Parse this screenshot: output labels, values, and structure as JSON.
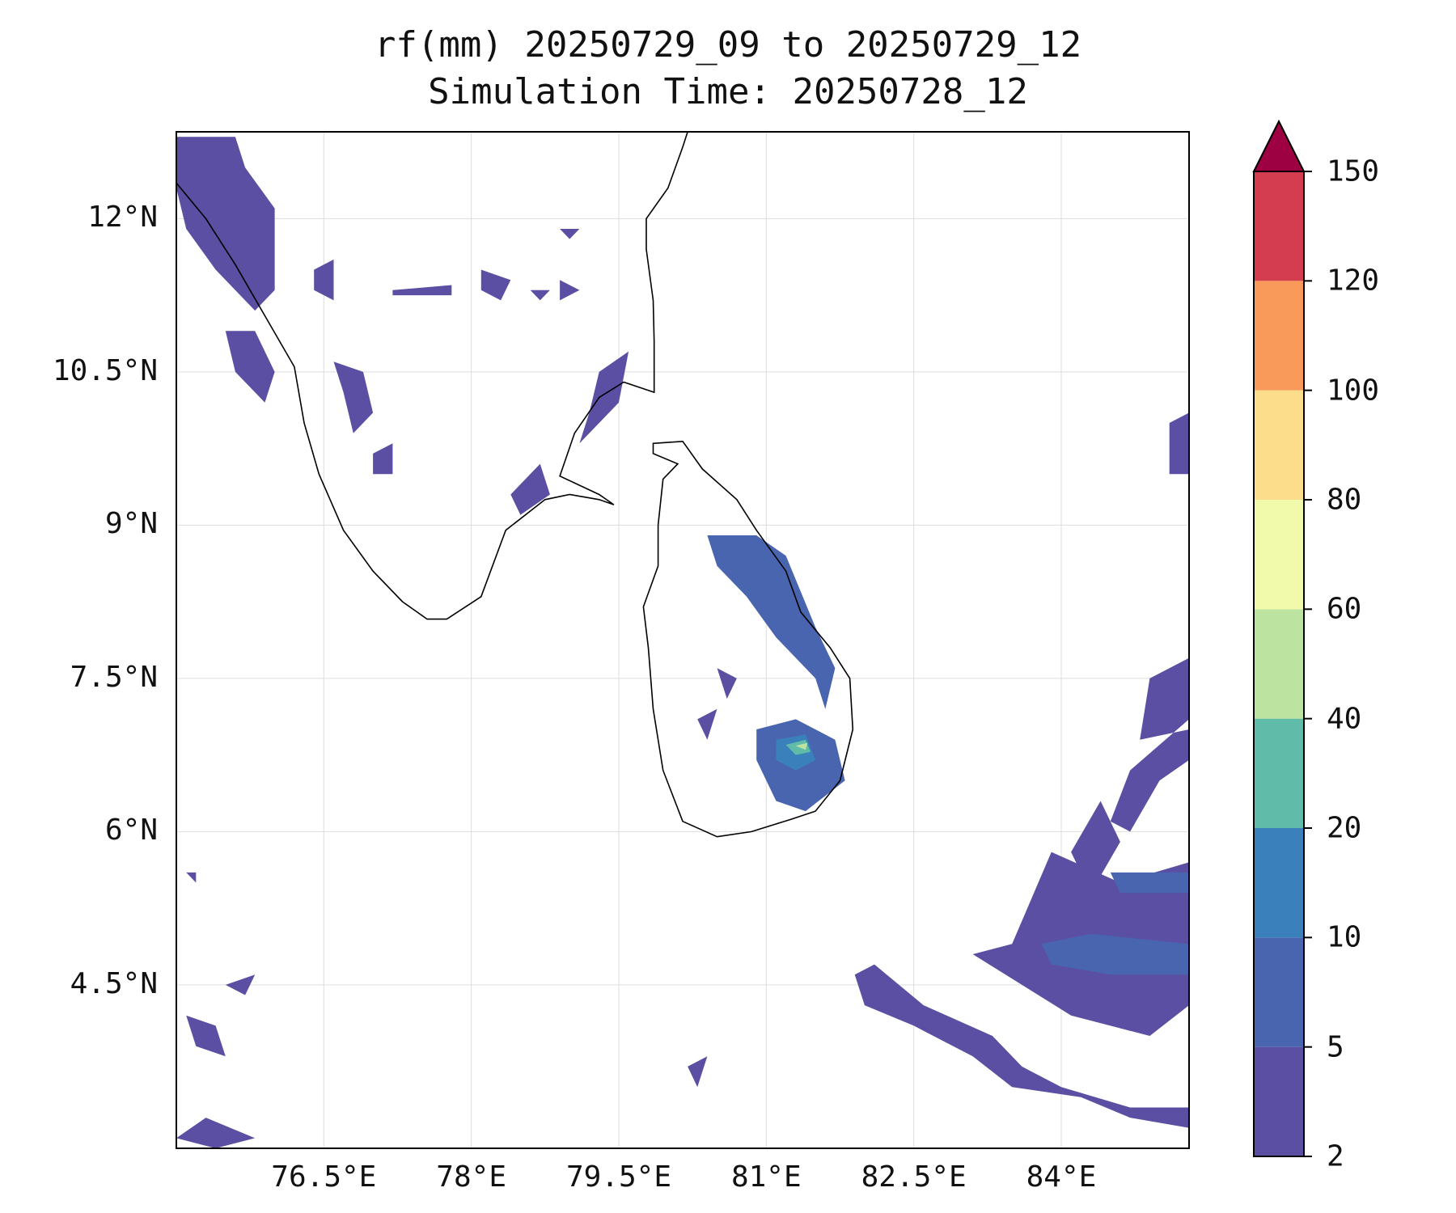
{
  "title": {
    "line1": "rf(mm) 20250729_09 to 20250729_12",
    "line2": "Simulation Time: 20250728_12"
  },
  "map": {
    "extent": {
      "lon_min": 75.0,
      "lon_max": 85.3,
      "lat_min": 2.9,
      "lat_max": 12.85
    },
    "lat_ticks": [
      {
        "value": 12.0,
        "label": "12°N"
      },
      {
        "value": 10.5,
        "label": "10.5°N"
      },
      {
        "value": 9.0,
        "label": "9°N"
      },
      {
        "value": 7.5,
        "label": "7.5°N"
      },
      {
        "value": 6.0,
        "label": "6°N"
      },
      {
        "value": 4.5,
        "label": "4.5°N"
      }
    ],
    "lon_ticks": [
      {
        "value": 76.5,
        "label": "76.5°E"
      },
      {
        "value": 78.0,
        "label": "78°E"
      },
      {
        "value": 79.5,
        "label": "79.5°E"
      },
      {
        "value": 81.0,
        "label": "81°E"
      },
      {
        "value": 82.5,
        "label": "82.5°E"
      },
      {
        "value": 84.0,
        "label": "84°E"
      }
    ],
    "gridlines": true,
    "coastline_color": "#000000"
  },
  "colorbar": {
    "levels": [
      "2",
      "5",
      "10",
      "20",
      "40",
      "60",
      "80",
      "100",
      "120",
      "150"
    ],
    "colors": [
      "#5a4fa2",
      "#4a65b0",
      "#3a80bb",
      "#60bca8",
      "#bde3a0",
      "#f1f9aa",
      "#fbdd8b",
      "#f99a5a",
      "#d43d50"
    ],
    "extend_color": "#9d0142",
    "extend": "max"
  },
  "rain_regions": [
    {
      "name": "north-kerala-coast",
      "level": 0,
      "polys": [
        [
          [
            75.0,
            12.8
          ],
          [
            75.6,
            12.8
          ],
          [
            75.7,
            12.5
          ],
          [
            76.0,
            12.1
          ],
          [
            76.0,
            11.3
          ],
          [
            75.8,
            11.1
          ],
          [
            75.4,
            11.5
          ],
          [
            75.1,
            11.9
          ],
          [
            75.0,
            12.3
          ]
        ]
      ]
    },
    {
      "name": "kerala-coast-mid",
      "level": 0,
      "polys": [
        [
          [
            75.5,
            10.9
          ],
          [
            75.8,
            10.9
          ],
          [
            76.0,
            10.5
          ],
          [
            75.9,
            10.2
          ],
          [
            75.6,
            10.5
          ]
        ]
      ]
    },
    {
      "name": "kerala-interior",
      "level": 0,
      "polys": [
        [
          [
            76.4,
            11.5
          ],
          [
            76.6,
            11.6
          ],
          [
            76.6,
            11.2
          ],
          [
            76.4,
            11.3
          ]
        ],
        [
          [
            76.6,
            10.6
          ],
          [
            76.9,
            10.5
          ],
          [
            77.0,
            10.1
          ],
          [
            76.8,
            9.9
          ],
          [
            76.7,
            10.3
          ]
        ],
        [
          [
            77.0,
            9.7
          ],
          [
            77.2,
            9.8
          ],
          [
            77.2,
            9.5
          ],
          [
            77.0,
            9.5
          ]
        ]
      ]
    },
    {
      "name": "tn-interior-patches",
      "level": 0,
      "polys": [
        [
          [
            77.2,
            11.3
          ],
          [
            77.8,
            11.35
          ],
          [
            77.8,
            11.25
          ],
          [
            77.2,
            11.25
          ]
        ],
        [
          [
            78.1,
            11.5
          ],
          [
            78.4,
            11.4
          ],
          [
            78.3,
            11.2
          ],
          [
            78.1,
            11.3
          ]
        ],
        [
          [
            78.6,
            11.3
          ],
          [
            78.8,
            11.3
          ],
          [
            78.7,
            11.2
          ]
        ],
        [
          [
            78.9,
            11.4
          ],
          [
            79.1,
            11.3
          ],
          [
            78.9,
            11.2
          ]
        ],
        [
          [
            78.9,
            11.9
          ],
          [
            79.1,
            11.9
          ],
          [
            79.0,
            11.8
          ]
        ]
      ]
    },
    {
      "name": "palk-coast-streak",
      "level": 0,
      "polys": [
        [
          [
            79.3,
            10.5
          ],
          [
            79.6,
            10.7
          ],
          [
            79.5,
            10.2
          ],
          [
            79.1,
            9.8
          ],
          [
            79.2,
            10.1
          ]
        ],
        [
          [
            78.4,
            9.3
          ],
          [
            78.7,
            9.6
          ],
          [
            78.8,
            9.3
          ],
          [
            78.5,
            9.1
          ]
        ]
      ]
    },
    {
      "name": "sri-lanka-east-band",
      "level": 1,
      "polys": [
        [
          [
            80.9,
            8.9
          ],
          [
            81.2,
            8.7
          ],
          [
            81.5,
            8.0
          ],
          [
            81.7,
            7.6
          ],
          [
            81.6,
            7.2
          ],
          [
            81.5,
            7.5
          ],
          [
            81.1,
            7.9
          ],
          [
            80.8,
            8.3
          ],
          [
            80.5,
            8.6
          ],
          [
            80.4,
            8.9
          ]
        ]
      ]
    },
    {
      "name": "sri-lanka-southeast",
      "level": 1,
      "polys": [
        [
          [
            80.9,
            7.0
          ],
          [
            81.3,
            7.1
          ],
          [
            81.7,
            6.9
          ],
          [
            81.8,
            6.5
          ],
          [
            81.4,
            6.2
          ],
          [
            81.1,
            6.3
          ],
          [
            80.9,
            6.7
          ]
        ]
      ]
    },
    {
      "name": "sri-lanka-southeast-core",
      "level": 2,
      "polys": [
        [
          [
            81.1,
            6.9
          ],
          [
            81.4,
            6.95
          ],
          [
            81.5,
            6.7
          ],
          [
            81.3,
            6.6
          ],
          [
            81.1,
            6.7
          ]
        ]
      ]
    },
    {
      "name": "sri-lanka-southeast-peak",
      "level": 3,
      "polys": [
        [
          [
            81.2,
            6.85
          ],
          [
            81.4,
            6.9
          ],
          [
            81.45,
            6.78
          ],
          [
            81.3,
            6.75
          ]
        ]
      ]
    },
    {
      "name": "sri-lanka-southeast-max",
      "level": 4,
      "polys": [
        [
          [
            81.3,
            6.84
          ],
          [
            81.42,
            6.87
          ],
          [
            81.4,
            6.8
          ]
        ]
      ]
    },
    {
      "name": "sri-lanka-interior-patches",
      "level": 0,
      "polys": [
        [
          [
            80.5,
            7.6
          ],
          [
            80.7,
            7.5
          ],
          [
            80.6,
            7.3
          ]
        ],
        [
          [
            80.3,
            7.1
          ],
          [
            80.5,
            7.2
          ],
          [
            80.4,
            6.9
          ]
        ]
      ]
    },
    {
      "name": "bay-east-bands",
      "level": 0,
      "polys": [
        [
          [
            84.9,
            7.5
          ],
          [
            85.3,
            7.7
          ],
          [
            85.3,
            7.1
          ],
          [
            84.7,
            6.6
          ],
          [
            84.5,
            6.1
          ],
          [
            84.7,
            6.0
          ],
          [
            85.0,
            6.5
          ],
          [
            85.3,
            6.7
          ],
          [
            85.3,
            7.0
          ],
          [
            84.8,
            6.9
          ]
        ],
        [
          [
            85.1,
            9.5
          ],
          [
            85.3,
            9.5
          ],
          [
            85.3,
            10.1
          ],
          [
            85.1,
            10.0
          ]
        ]
      ]
    },
    {
      "name": "southeast-ocean-bands",
      "level": 0,
      "polys": [
        [
          [
            83.1,
            4.8
          ],
          [
            83.6,
            4.5
          ],
          [
            84.1,
            4.2
          ],
          [
            84.9,
            4.0
          ],
          [
            85.3,
            4.3
          ],
          [
            85.3,
            5.7
          ],
          [
            84.6,
            5.5
          ],
          [
            83.9,
            5.8
          ],
          [
            83.5,
            4.9
          ]
        ],
        [
          [
            81.9,
            4.6
          ],
          [
            82.1,
            4.7
          ],
          [
            82.6,
            4.3
          ],
          [
            83.3,
            4.0
          ],
          [
            83.6,
            3.7
          ],
          [
            84.0,
            3.5
          ],
          [
            84.7,
            3.3
          ],
          [
            85.3,
            3.3
          ],
          [
            85.3,
            3.1
          ],
          [
            84.7,
            3.2
          ],
          [
            84.2,
            3.4
          ],
          [
            83.5,
            3.5
          ],
          [
            83.1,
            3.8
          ],
          [
            82.5,
            4.1
          ],
          [
            82.0,
            4.3
          ]
        ],
        [
          [
            84.1,
            5.8
          ],
          [
            84.4,
            6.3
          ],
          [
            84.6,
            5.9
          ],
          [
            84.3,
            5.4
          ]
        ]
      ]
    },
    {
      "name": "southeast-ocean-core",
      "level": 1,
      "polys": [
        [
          [
            83.8,
            4.9
          ],
          [
            84.3,
            5.0
          ],
          [
            85.3,
            4.9
          ],
          [
            85.3,
            4.6
          ],
          [
            84.5,
            4.6
          ],
          [
            83.9,
            4.7
          ]
        ],
        [
          [
            84.5,
            5.6
          ],
          [
            85.3,
            5.6
          ],
          [
            85.3,
            5.4
          ],
          [
            84.6,
            5.4
          ]
        ]
      ]
    },
    {
      "name": "southwest-ocean-patches",
      "level": 0,
      "polys": [
        [
          [
            75.1,
            4.2
          ],
          [
            75.4,
            4.1
          ],
          [
            75.5,
            3.8
          ],
          [
            75.2,
            3.9
          ]
        ],
        [
          [
            75.5,
            4.5
          ],
          [
            75.8,
            4.6
          ],
          [
            75.7,
            4.4
          ]
        ],
        [
          [
            75.0,
            3.0
          ],
          [
            75.3,
            3.2
          ],
          [
            75.8,
            3.0
          ],
          [
            75.4,
            2.9
          ]
        ],
        [
          [
            80.2,
            3.7
          ],
          [
            80.4,
            3.8
          ],
          [
            80.3,
            3.5
          ]
        ],
        [
          [
            75.1,
            5.6
          ],
          [
            75.2,
            5.6
          ],
          [
            75.2,
            5.5
          ]
        ]
      ]
    }
  ],
  "coast_india": [
    [
      75.0,
      12.35
    ],
    [
      75.3,
      12.0
    ],
    [
      75.6,
      11.55
    ],
    [
      75.9,
      11.05
    ],
    [
      76.2,
      10.55
    ],
    [
      76.3,
      10.0
    ],
    [
      76.45,
      9.5
    ],
    [
      76.7,
      8.95
    ],
    [
      77.0,
      8.55
    ],
    [
      77.3,
      8.25
    ],
    [
      77.55,
      8.08
    ],
    [
      77.75,
      8.08
    ],
    [
      78.1,
      8.3
    ],
    [
      78.35,
      8.95
    ],
    [
      78.75,
      9.25
    ],
    [
      79.0,
      9.3
    ],
    [
      79.3,
      9.25
    ],
    [
      79.45,
      9.2
    ],
    [
      79.3,
      9.3
    ],
    [
      78.9,
      9.48
    ],
    [
      79.05,
      9.9
    ],
    [
      79.3,
      10.25
    ],
    [
      79.55,
      10.4
    ],
    [
      79.86,
      10.3
    ],
    [
      79.86,
      10.8
    ],
    [
      79.85,
      11.2
    ],
    [
      79.78,
      11.7
    ],
    [
      79.78,
      12.0
    ],
    [
      80.0,
      12.3
    ],
    [
      80.15,
      12.7
    ],
    [
      80.2,
      12.85
    ]
  ],
  "coast_srilanka": [
    [
      79.85,
      9.8
    ],
    [
      80.15,
      9.82
    ],
    [
      80.35,
      9.55
    ],
    [
      80.7,
      9.25
    ],
    [
      80.9,
      8.95
    ],
    [
      81.2,
      8.55
    ],
    [
      81.35,
      8.15
    ],
    [
      81.65,
      7.8
    ],
    [
      81.85,
      7.5
    ],
    [
      81.88,
      7.0
    ],
    [
      81.75,
      6.5
    ],
    [
      81.5,
      6.2
    ],
    [
      81.25,
      6.12
    ],
    [
      80.85,
      6.0
    ],
    [
      80.5,
      5.95
    ],
    [
      80.15,
      6.1
    ],
    [
      79.95,
      6.6
    ],
    [
      79.85,
      7.2
    ],
    [
      79.8,
      7.8
    ],
    [
      79.75,
      8.2
    ],
    [
      79.9,
      8.6
    ],
    [
      79.9,
      9.0
    ],
    [
      79.95,
      9.45
    ],
    [
      80.1,
      9.6
    ],
    [
      79.85,
      9.7
    ]
  ]
}
